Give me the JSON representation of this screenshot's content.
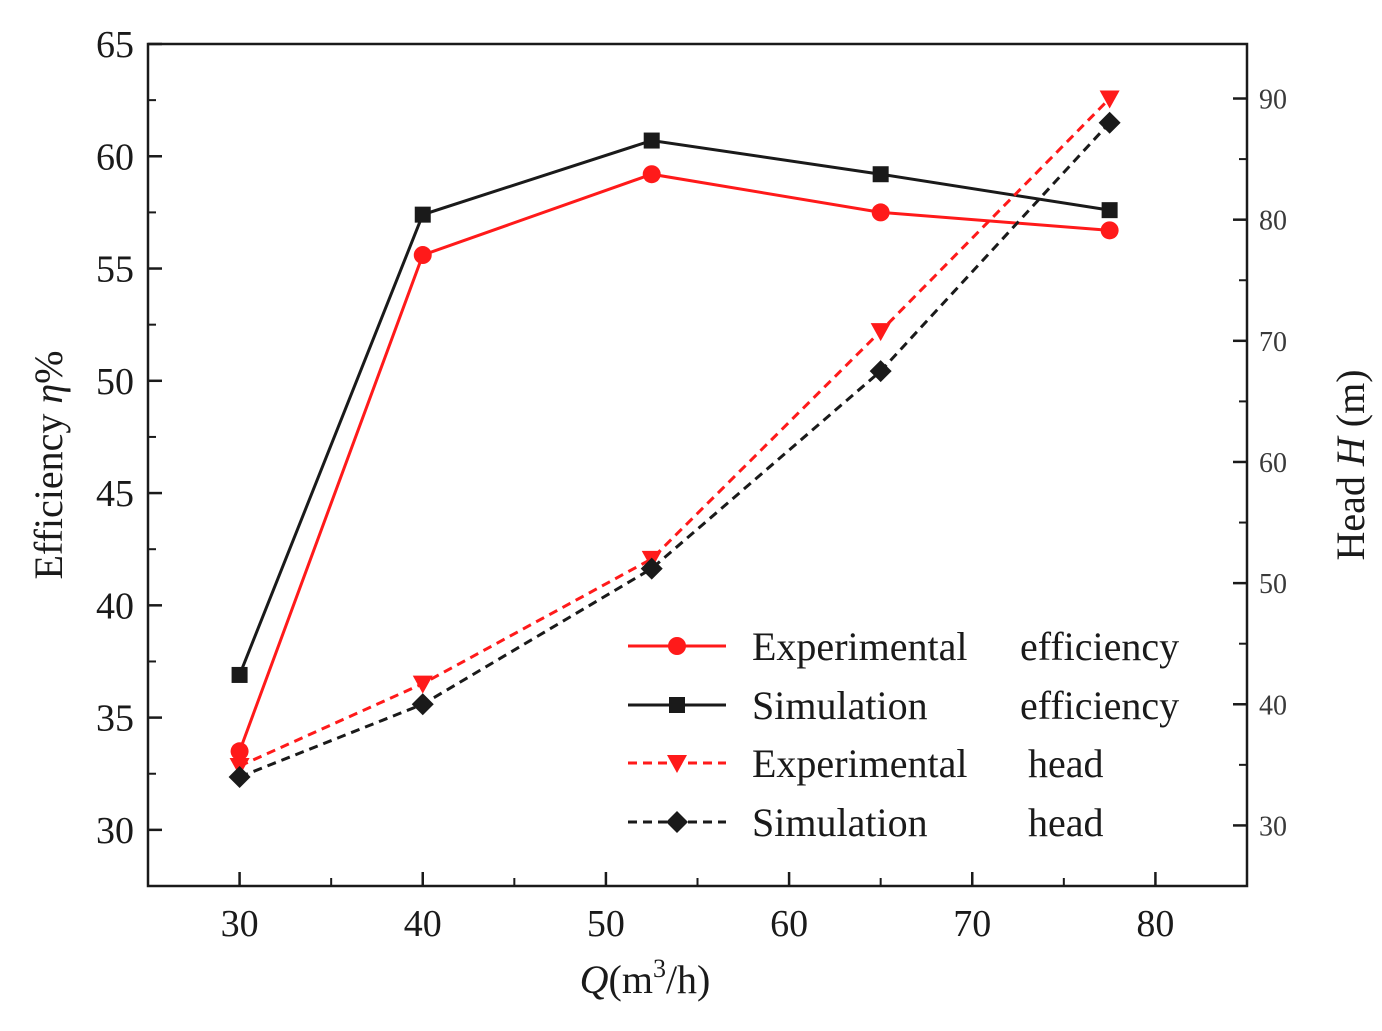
{
  "chart_data": {
    "type": "line",
    "x_axis": {
      "label_var": "Q",
      "label_rest": "(m",
      "label_sup": "3",
      "label_end": "/h)",
      "ticks": [
        30,
        40,
        50,
        60,
        70,
        80
      ],
      "range": [
        25,
        85
      ]
    },
    "y_axis_left": {
      "label_prefix": "Efficiency ",
      "label_var": "η",
      "label_suffix": "%",
      "ticks": [
        30,
        35,
        40,
        45,
        50,
        55,
        60,
        65
      ],
      "range": [
        27.5,
        65
      ]
    },
    "y_axis_right": {
      "label_prefix": "Head ",
      "label_var": "H",
      "label_suffix": " (m)",
      "ticks": [
        30,
        40,
        50,
        60,
        70,
        80,
        90
      ],
      "range": [
        25,
        94.5
      ]
    },
    "legend_position": "bottom-right",
    "series": [
      {
        "name": "Experimental efficiency",
        "legend_label": [
          "Experimental",
          "efficiency"
        ],
        "axis": "left",
        "color": "#ff1a1a",
        "style": "solid",
        "marker": "circle",
        "x": [
          30,
          40,
          52.5,
          65,
          77.5
        ],
        "y": [
          33.5,
          55.6,
          59.2,
          57.5,
          56.7
        ]
      },
      {
        "name": "Simulation efficiency",
        "legend_label": [
          "Simulation",
          "efficiency"
        ],
        "axis": "left",
        "color": "#1a1a1a",
        "style": "solid",
        "marker": "square",
        "x": [
          30,
          40,
          52.5,
          65,
          77.5
        ],
        "y": [
          36.9,
          57.4,
          60.7,
          59.2,
          57.6
        ]
      },
      {
        "name": "Experimental head",
        "legend_label": [
          "Experimental",
          "head"
        ],
        "axis": "right",
        "color": "#ff1a1a",
        "style": "dashed",
        "marker": "triangle-down",
        "x": [
          30,
          40,
          52.5,
          65,
          77.5
        ],
        "y": [
          34.9,
          41.7,
          52.0,
          70.8,
          90.0
        ]
      },
      {
        "name": "Simulation head",
        "legend_label": [
          "Simulation",
          "head"
        ],
        "axis": "right",
        "color": "#1a1a1a",
        "style": "dashed",
        "marker": "diamond",
        "x": [
          30,
          40,
          52.5,
          65,
          77.5
        ],
        "y": [
          34.0,
          40.0,
          51.2,
          67.5,
          88.0
        ]
      }
    ]
  }
}
